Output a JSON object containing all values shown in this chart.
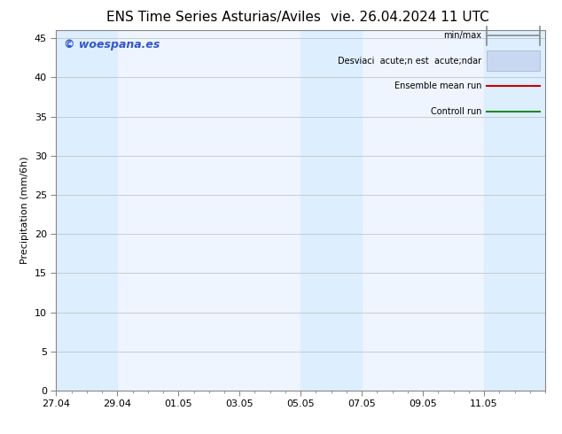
{
  "title_left": "ENS Time Series Asturias/Aviles",
  "title_right": "vie. 26.04.2024 11 UTC",
  "ylabel": "Precipitation (mm/6h)",
  "watermark": "© woespana.es",
  "ylim": [
    0,
    46
  ],
  "yticks": [
    0,
    5,
    10,
    15,
    20,
    25,
    30,
    35,
    40,
    45
  ],
  "xtick_labels": [
    "27.04",
    "29.04",
    "01.05",
    "03.05",
    "05.05",
    "07.05",
    "09.05",
    "11.05"
  ],
  "xtick_positions": [
    0,
    2,
    4,
    6,
    8,
    10,
    12,
    14
  ],
  "x_max": 16,
  "shaded_bands": [
    {
      "start": 0,
      "end": 2
    },
    {
      "start": 8,
      "end": 10
    },
    {
      "start": 14,
      "end": 16
    }
  ],
  "band_color": "#ddeeff",
  "bg_color": "#ffffff",
  "plot_bg_color": "#eef5ff",
  "legend_line1_label": "min/max",
  "legend_line2_label": "Desviaci  acute;n est  acute;ndar",
  "legend_line3_label": "Ensemble mean run",
  "legend_line4_label": "Controll run",
  "legend_line3_color": "#cc0000",
  "legend_line4_color": "#228822",
  "legend_bar_color": "#c8d8f0",
  "legend_bar_edge_color": "#aaaacc",
  "title_fontsize": 11,
  "tick_fontsize": 8,
  "label_fontsize": 8,
  "watermark_color": "#3355cc",
  "watermark_fontsize": 9
}
